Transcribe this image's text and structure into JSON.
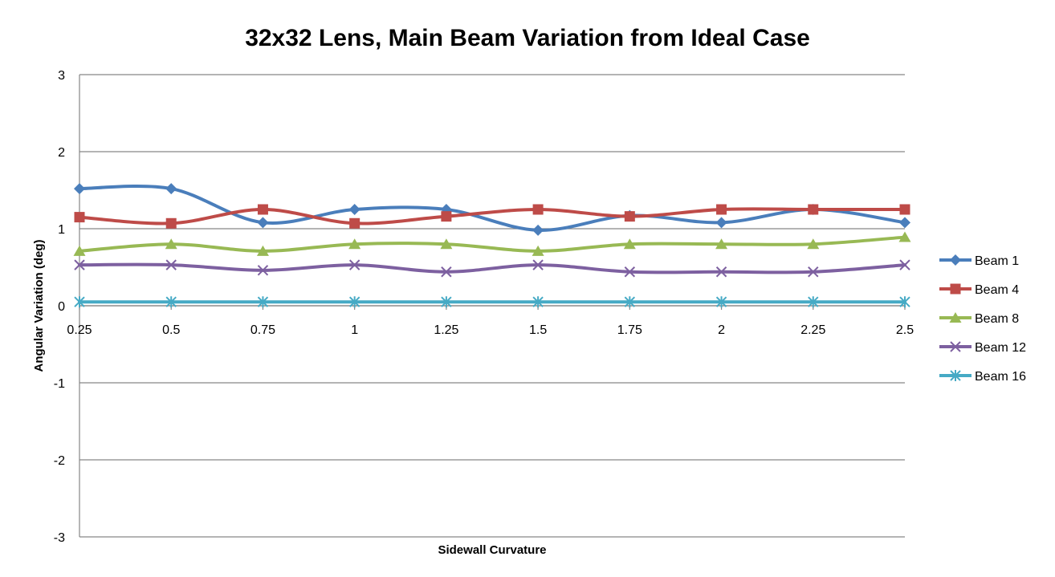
{
  "chart_data": {
    "type": "line",
    "title": "32x32 Lens, Main Beam Variation from Ideal Case",
    "xlabel": "Sidewall Curvature",
    "ylabel": "Angular Variation (deg)",
    "ylim": [
      -3,
      3
    ],
    "y_ticks": [
      "3",
      "2",
      "1",
      "0",
      "-1",
      "-2",
      "-3"
    ],
    "categories": [
      "0.25",
      "0.5",
      "0.75",
      "1",
      "1.25",
      "1.5",
      "1.75",
      "2",
      "2.25",
      "2.5"
    ],
    "grid": true,
    "legend_position": "right",
    "smoothed": true,
    "series": [
      {
        "name": "Beam 1",
        "color": "#4a7ebb",
        "marker": "diamond",
        "values": [
          1.52,
          1.52,
          1.08,
          1.25,
          1.25,
          0.98,
          1.17,
          1.08,
          1.25,
          1.08
        ]
      },
      {
        "name": "Beam 4",
        "color": "#be4b48",
        "marker": "square",
        "values": [
          1.15,
          1.07,
          1.25,
          1.07,
          1.16,
          1.25,
          1.16,
          1.25,
          1.25,
          1.25
        ]
      },
      {
        "name": "Beam 8",
        "color": "#98b954",
        "marker": "triangle",
        "values": [
          0.71,
          0.8,
          0.71,
          0.8,
          0.8,
          0.71,
          0.8,
          0.8,
          0.8,
          0.89
        ]
      },
      {
        "name": "Beam 12",
        "color": "#7d60a0",
        "marker": "x",
        "values": [
          0.53,
          0.53,
          0.46,
          0.53,
          0.44,
          0.53,
          0.44,
          0.44,
          0.44,
          0.53
        ]
      },
      {
        "name": "Beam 16",
        "color": "#46aac5",
        "marker": "asterisk",
        "values": [
          0.05,
          0.05,
          0.05,
          0.05,
          0.05,
          0.05,
          0.05,
          0.05,
          0.05,
          0.05
        ]
      }
    ]
  }
}
